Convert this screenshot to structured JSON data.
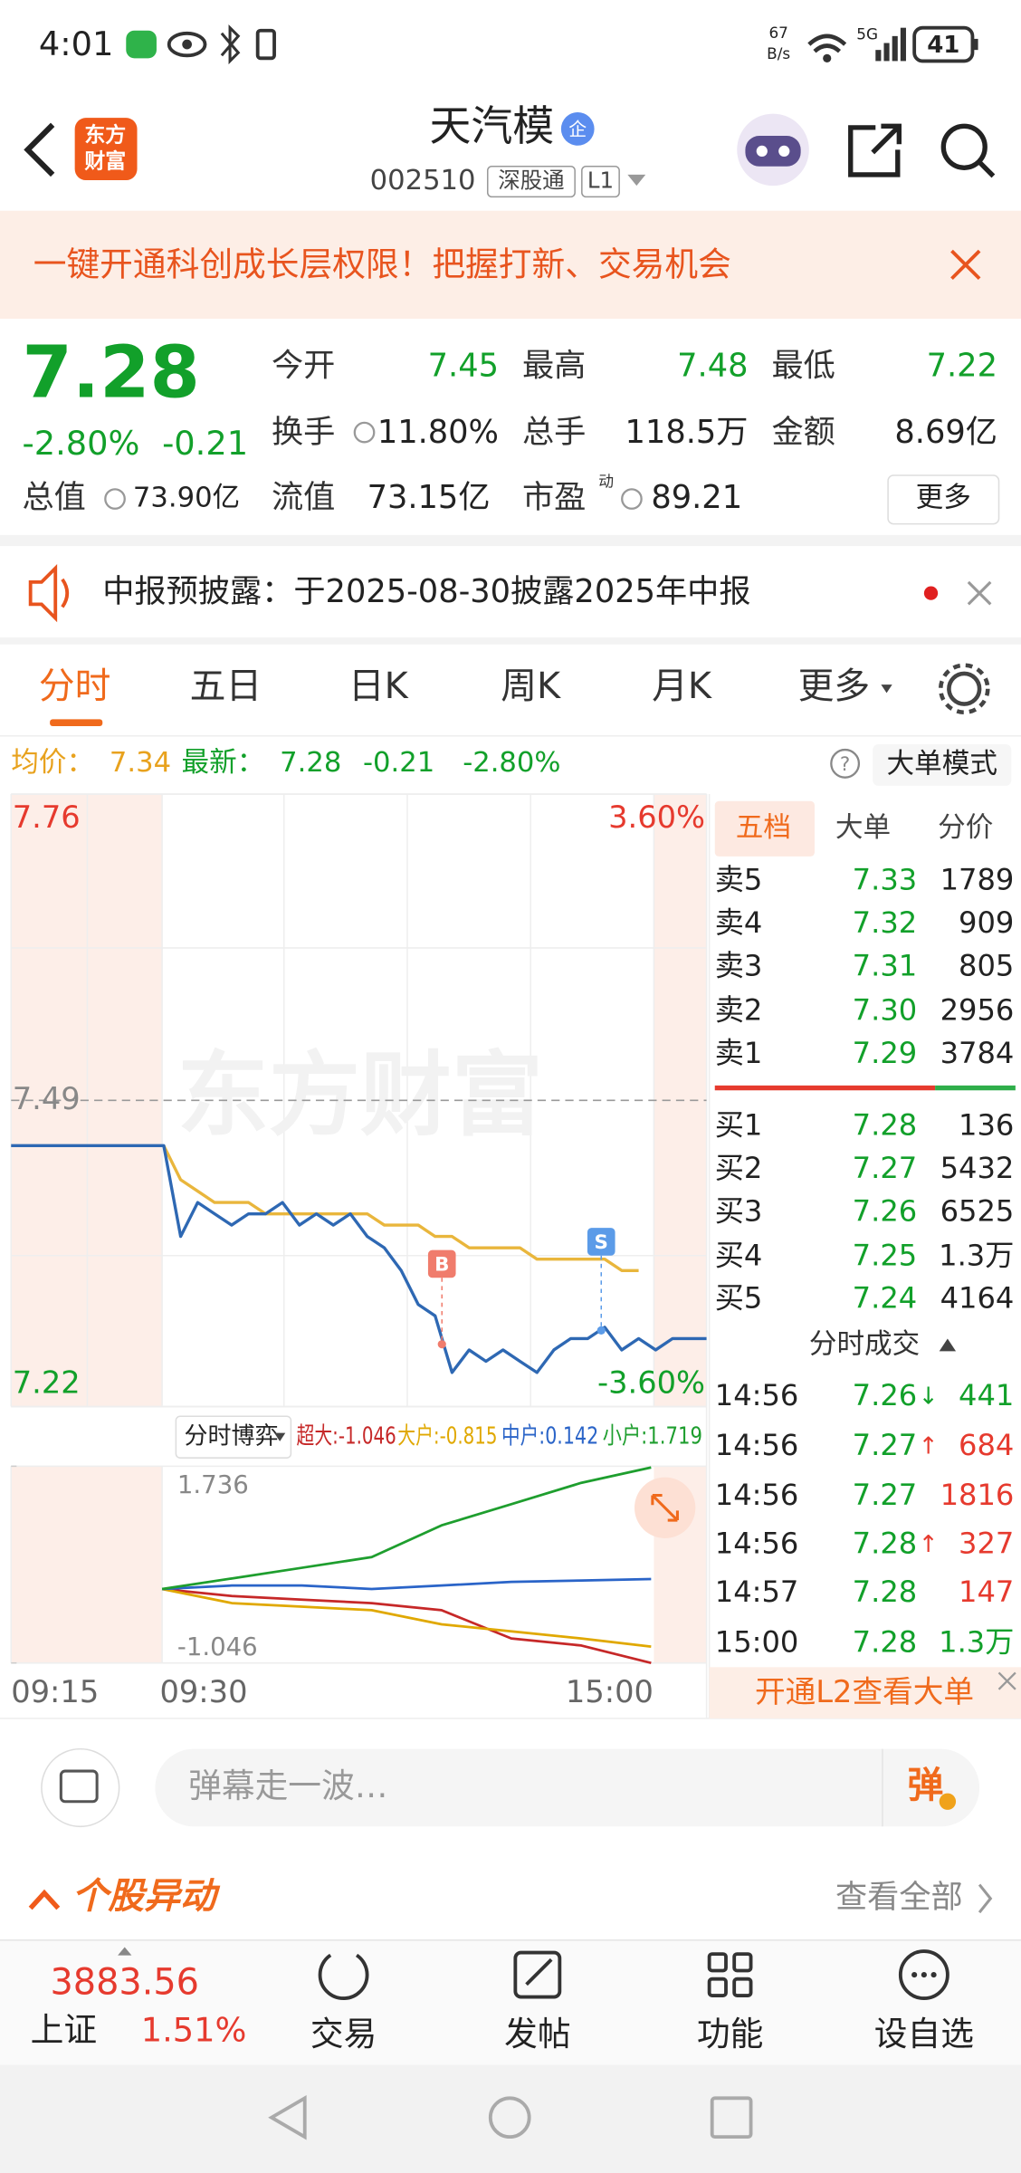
{
  "status_bar": {
    "time": "4:01",
    "net_speed": "67",
    "net_unit": "B/s",
    "signal": "5G",
    "battery": "41"
  },
  "header": {
    "logo": [
      "东方",
      "财富"
    ],
    "title": "天汽模",
    "badge": "企",
    "code": "002510",
    "tags": [
      "深股通",
      "L1"
    ]
  },
  "banner": "一键开通科创成长层权限！把握打新、交易机会",
  "quote": {
    "price": "7.28",
    "change_pct": "-2.80%",
    "change": "-0.21",
    "fields": [
      {
        "label": "今开",
        "value": "7.45"
      },
      {
        "label": "最高",
        "value": "7.48"
      },
      {
        "label": "最低",
        "value": "7.22"
      },
      {
        "label": "换手",
        "value": "11.80%"
      },
      {
        "label": "总手",
        "value": "118.5万"
      },
      {
        "label": "金额",
        "value": "8.69亿"
      },
      {
        "label": "总值",
        "value": "73.90亿"
      },
      {
        "label": "流值",
        "value": "73.15亿"
      },
      {
        "label": "市盈",
        "sup": "动",
        "value": "89.21"
      }
    ],
    "more": "更多"
  },
  "notice": "中报预披露：于2025-08-30披露2025年中报",
  "tabs": [
    "分时",
    "五日",
    "日K",
    "周K",
    "月K",
    "更多"
  ],
  "summary": {
    "avg_label": "均价：",
    "avg": "7.34",
    "last_label": "最新：",
    "last": "7.28",
    "change": "-0.21",
    "change_pct": "-2.80%",
    "help": "?",
    "mode": "大单模式"
  },
  "chart_data": [
    {
      "type": "line",
      "watermark": "东方财富",
      "ylim": [
        7.22,
        7.76
      ],
      "yticks": [
        7.22,
        7.49,
        7.76
      ],
      "y2lim": [
        -3.6,
        3.6
      ],
      "y2ticks": [
        {
          "value": 3.6,
          "label": "3.60%"
        },
        {
          "value": -3.6,
          "label": "-3.60%"
        }
      ],
      "x_labels": [
        "09:15",
        "09:30",
        "15:00"
      ],
      "trade_markers": [
        "B",
        "S"
      ],
      "series": [
        {
          "color": "#2e68b3",
          "values": [
            7.45,
            7.45,
            7.45,
            7.45,
            7.45,
            7.45,
            7.45,
            7.45,
            7.45,
            7.45,
            7.37,
            7.4,
            7.39,
            7.38,
            7.39,
            7.39,
            7.4,
            7.38,
            7.39,
            7.38,
            7.39,
            7.37,
            7.36,
            7.34,
            7.31,
            7.3,
            7.25,
            7.27,
            7.26,
            7.27,
            7.26,
            7.25,
            7.27,
            7.28,
            7.28,
            7.29,
            7.27,
            7.28,
            7.27,
            7.28,
            7.28,
            7.28
          ]
        },
        {
          "color": "#e9b63c",
          "values": [
            null,
            null,
            null,
            null,
            null,
            null,
            null,
            null,
            null,
            7.45,
            7.42,
            7.41,
            7.4,
            7.4,
            7.4,
            7.39,
            7.39,
            7.39,
            7.39,
            7.39,
            7.39,
            7.39,
            7.38,
            7.38,
            7.38,
            7.37,
            7.37,
            7.36,
            7.36,
            7.36,
            7.36,
            7.35,
            7.35,
            7.35,
            7.35,
            7.35,
            7.34,
            7.34,
            null,
            null,
            null,
            null
          ]
        }
      ]
    },
    {
      "type": "line",
      "selector": "分时博弈",
      "ylim": [
        -1.046,
        1.736
      ],
      "yticks": [
        1.736,
        -1.046
      ],
      "series": [
        {
          "name": "超大:-1.046",
          "color": "#c62828",
          "values": [
            0,
            -0.1,
            -0.15,
            -0.2,
            -0.3,
            -0.7,
            -0.8,
            -1.046
          ]
        },
        {
          "name": "大户:-0.815",
          "color": "#e0a800",
          "values": [
            0,
            -0.2,
            -0.25,
            -0.3,
            -0.5,
            -0.6,
            -0.7,
            -0.815
          ]
        },
        {
          "name": "中户:0.142",
          "color": "#2a64c8",
          "values": [
            0,
            0.05,
            0.05,
            0,
            0.05,
            0.1,
            0.12,
            0.142
          ]
        },
        {
          "name": "小户:1.719",
          "color": "#1e9e2e",
          "values": [
            0,
            0.15,
            0.3,
            0.45,
            0.9,
            1.2,
            1.5,
            1.719
          ]
        }
      ]
    }
  ],
  "order_book": {
    "tabs": [
      "五档",
      "大单",
      "分价"
    ],
    "asks": [
      {
        "label": "卖5",
        "price": "7.33",
        "volume": "1789"
      },
      {
        "label": "卖4",
        "price": "7.32",
        "volume": "909"
      },
      {
        "label": "卖3",
        "price": "7.31",
        "volume": "805"
      },
      {
        "label": "卖2",
        "price": "7.30",
        "volume": "2956"
      },
      {
        "label": "卖1",
        "price": "7.29",
        "volume": "3784"
      }
    ],
    "bids": [
      {
        "label": "买1",
        "price": "7.28",
        "volume": "136"
      },
      {
        "label": "买2",
        "price": "7.27",
        "volume": "5432"
      },
      {
        "label": "买3",
        "price": "7.26",
        "volume": "6525"
      },
      {
        "label": "买4",
        "price": "7.25",
        "volume": "1.3万"
      },
      {
        "label": "买5",
        "price": "7.24",
        "volume": "4164"
      }
    ]
  },
  "trades": {
    "title": "分时成交",
    "rows": [
      {
        "time": "14:56",
        "price": "7.26",
        "arrow": "↓",
        "volume": "441"
      },
      {
        "time": "14:56",
        "price": "7.27",
        "arrow": "↑",
        "volume": "684"
      },
      {
        "time": "14:56",
        "price": "7.27",
        "volume": "1816"
      },
      {
        "time": "14:56",
        "price": "7.28",
        "arrow": "↑",
        "volume": "327"
      },
      {
        "time": "14:57",
        "price": "7.28",
        "volume": "147"
      },
      {
        "time": "15:00",
        "price": "7.28",
        "volume": "1.3万"
      }
    ],
    "promo": "开通L2查看大单"
  },
  "comment": {
    "placeholder": "弹幕走一波…",
    "button": "弹"
  },
  "section": {
    "title": "个股异动",
    "link": "查看全部"
  },
  "bottom_nav": {
    "index_value": "3883.56",
    "index_name": "上证",
    "index_change": "1.51%",
    "items": [
      "交易",
      "发帖",
      "功能",
      "设自选"
    ]
  }
}
